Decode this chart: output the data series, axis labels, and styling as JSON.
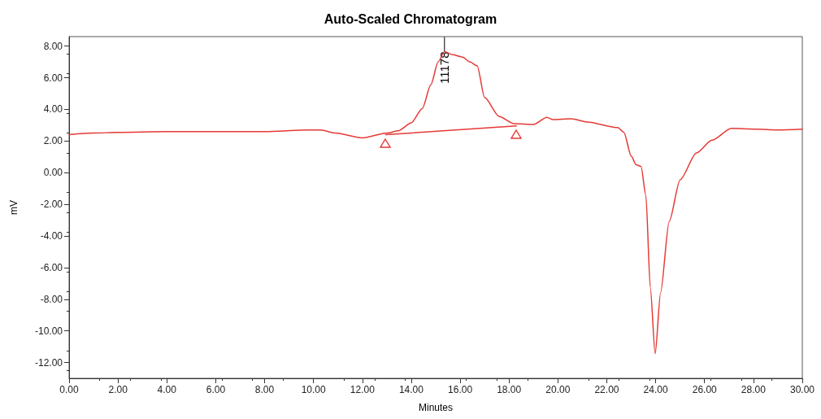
{
  "chart_data": {
    "type": "line",
    "title": "Auto-Scaled Chromatogram",
    "xlabel": "Minutes",
    "ylabel": "mV",
    "xlim": [
      0,
      30
    ],
    "ylim": [
      -13,
      8.6
    ],
    "xticks": [
      {
        "value": 0,
        "label": "0.00"
      },
      {
        "value": 2,
        "label": "2.00"
      },
      {
        "value": 4,
        "label": "4.00"
      },
      {
        "value": 6,
        "label": "6.00"
      },
      {
        "value": 8,
        "label": "8.00"
      },
      {
        "value": 10,
        "label": "10.00"
      },
      {
        "value": 12,
        "label": "12.00"
      },
      {
        "value": 14,
        "label": "14.00"
      },
      {
        "value": 16,
        "label": "16.00"
      },
      {
        "value": 18,
        "label": "18.00"
      },
      {
        "value": 20,
        "label": "20.00"
      },
      {
        "value": 22,
        "label": "22.00"
      },
      {
        "value": 24,
        "label": "24.00"
      },
      {
        "value": 26,
        "label": "26.00"
      },
      {
        "value": 28,
        "label": "28.00"
      },
      {
        "value": 30,
        "label": "30.00"
      }
    ],
    "yticks": [
      {
        "value": -12,
        "label": "-12.00"
      },
      {
        "value": -10,
        "label": "-10.00"
      },
      {
        "value": -8,
        "label": "-8.00"
      },
      {
        "value": -6,
        "label": "-6.00"
      },
      {
        "value": -4,
        "label": "-4.00"
      },
      {
        "value": -2,
        "label": "-2.00"
      },
      {
        "value": 0,
        "label": "0.00"
      },
      {
        "value": 2,
        "label": "2.00"
      },
      {
        "value": 4,
        "label": "4.00"
      },
      {
        "value": 6,
        "label": "6.00"
      },
      {
        "value": 8,
        "label": "8.00"
      }
    ],
    "grid": false,
    "marker": "none",
    "line_style": "solid",
    "annotations": [
      "11178"
    ],
    "series": [
      {
        "color": "#e53935",
        "x": [
          0,
          1,
          2,
          4,
          6,
          8,
          9.8,
          10.3,
          10.9,
          12,
          13,
          13.47,
          14,
          14.45,
          14.8,
          15.1,
          15.36,
          15.7,
          16.1,
          16.4,
          16.7,
          17,
          17.6,
          18.2,
          19,
          19.55,
          19.8,
          20.55,
          21.2,
          22.45,
          22.7,
          23,
          23.2,
          23.4,
          23.6,
          23.78,
          23.98,
          24.2,
          24.55,
          25,
          25.67,
          26.3,
          27.1,
          28.1,
          29,
          30
        ],
        "values": [
          2.4,
          2.5,
          2.55,
          2.6,
          2.6,
          2.6,
          2.7,
          2.7,
          2.5,
          2.2,
          2.5,
          2.65,
          3.15,
          4.05,
          5.55,
          7.0,
          7.65,
          7.45,
          7.3,
          7.0,
          6.75,
          4.75,
          3.55,
          3.1,
          3.05,
          3.5,
          3.35,
          3.4,
          3.2,
          2.85,
          2.55,
          1.05,
          0.5,
          0.4,
          -1.45,
          -7.25,
          -11.45,
          -7.6,
          -3.1,
          -0.45,
          1.25,
          2.05,
          2.8,
          2.75,
          2.7,
          2.75
        ]
      },
      {
        "type": "line",
        "color": "#e53935",
        "x": [
          12.95,
          18.3
        ],
        "values": [
          2.4,
          2.95
        ]
      }
    ]
  }
}
